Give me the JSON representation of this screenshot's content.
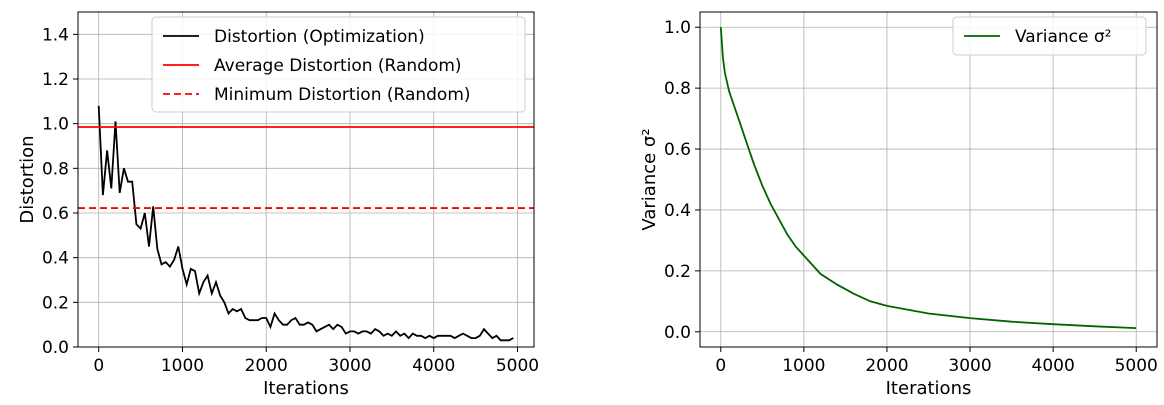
{
  "chart_data": [
    {
      "type": "line",
      "xlabel": "Iterations",
      "ylabel": "Distortion",
      "xlim": [
        -247.5,
        5197.5
      ],
      "ylim": [
        0,
        1.5
      ],
      "xticks": [
        "0",
        "1000",
        "2000",
        "3000",
        "4000",
        "5000"
      ],
      "yticks": [
        "0.0",
        "0.2",
        "0.4",
        "0.6",
        "0.8",
        "1.0",
        "1.2",
        "1.4"
      ],
      "grid": true,
      "legend_position": "top-right",
      "series": [
        {
          "name": "Distortion (Optimization)",
          "color": "#000000",
          "style": "solid",
          "x_start": 0,
          "x_step": 50,
          "y": [
            1.08,
            0.68,
            0.88,
            0.71,
            1.01,
            0.69,
            0.8,
            0.74,
            0.74,
            0.55,
            0.53,
            0.6,
            0.45,
            0.63,
            0.44,
            0.37,
            0.38,
            0.36,
            0.39,
            0.45,
            0.35,
            0.28,
            0.35,
            0.34,
            0.24,
            0.29,
            0.32,
            0.24,
            0.29,
            0.23,
            0.2,
            0.15,
            0.17,
            0.16,
            0.17,
            0.13,
            0.12,
            0.12,
            0.12,
            0.13,
            0.13,
            0.09,
            0.15,
            0.12,
            0.1,
            0.1,
            0.12,
            0.13,
            0.1,
            0.1,
            0.11,
            0.1,
            0.07,
            0.08,
            0.09,
            0.1,
            0.08,
            0.1,
            0.09,
            0.06,
            0.07,
            0.07,
            0.06,
            0.07,
            0.07,
            0.06,
            0.08,
            0.07,
            0.05,
            0.06,
            0.05,
            0.07,
            0.05,
            0.06,
            0.04,
            0.06,
            0.05,
            0.05,
            0.04,
            0.05,
            0.04,
            0.05,
            0.05,
            0.05,
            0.05,
            0.04,
            0.05,
            0.06,
            0.05,
            0.04,
            0.04,
            0.05,
            0.08,
            0.06,
            0.04,
            0.05,
            0.03,
            0.03,
            0.03,
            0.04
          ]
        },
        {
          "name": "Average Distortion (Random)",
          "color": "#ff0000",
          "style": "solid",
          "y_constant": 0.985
        },
        {
          "name": "Minimum Distortion (Random)",
          "color": "#ff0000",
          "style": "dashed",
          "y_constant": 0.622
        }
      ]
    },
    {
      "type": "line",
      "xlabel": "Iterations",
      "ylabel": "Variance σ²",
      "xlim": [
        -250,
        5250
      ],
      "ylim": [
        -0.05,
        1.05
      ],
      "xticks": [
        "0",
        "1000",
        "2000",
        "3000",
        "4000",
        "5000"
      ],
      "yticks": [
        "0.0",
        "0.2",
        "0.4",
        "0.6",
        "0.8",
        "1.0"
      ],
      "grid": true,
      "legend_position": "top-right",
      "series": [
        {
          "name": "Variance σ²",
          "color": "#006400",
          "style": "solid",
          "x": [
            0,
            25,
            50,
            100,
            200,
            300,
            400,
            500,
            600,
            700,
            800,
            900,
            1000,
            1200,
            1400,
            1600,
            1800,
            2000,
            2500,
            3000,
            3500,
            4000,
            4500,
            5000
          ],
          "y": [
            1.0,
            0.9,
            0.85,
            0.79,
            0.71,
            0.63,
            0.55,
            0.48,
            0.42,
            0.37,
            0.32,
            0.28,
            0.25,
            0.19,
            0.155,
            0.125,
            0.1,
            0.085,
            0.06,
            0.045,
            0.033,
            0.025,
            0.018,
            0.012
          ]
        }
      ]
    }
  ]
}
